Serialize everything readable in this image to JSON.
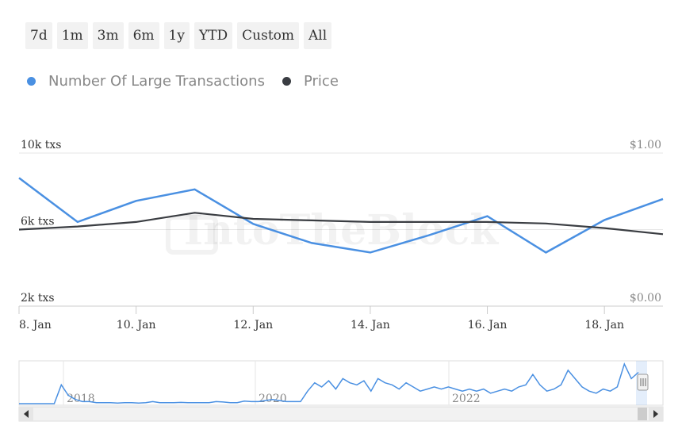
{
  "range_buttons": [
    "7d",
    "1m",
    "3m",
    "6m",
    "1y",
    "YTD",
    "Custom",
    "All"
  ],
  "watermark": "IntoTheBlock",
  "colors": {
    "large_tx": "#4a90e2",
    "price": "#3a3d42",
    "grid": "#e6e6e6",
    "axis_text": "#333333",
    "muted_text": "#888888"
  },
  "chart_data": {
    "type": "line",
    "legend_placement": "top-left",
    "x": [
      "8. Jan",
      "9. Jan",
      "10. Jan",
      "11. Jan",
      "12. Jan",
      "13. Jan",
      "14. Jan",
      "15. Jan",
      "16. Jan",
      "17. Jan",
      "18. Jan",
      "19. Jan"
    ],
    "x_tick_labels": [
      "8. Jan",
      "10. Jan",
      "12. Jan",
      "14. Jan",
      "16. Jan",
      "18. Jan"
    ],
    "left_axis": {
      "ticks": [
        "10k txs",
        "6k txs",
        "2k txs"
      ],
      "tick_values": [
        10000,
        6000,
        2000
      ],
      "range": [
        2000,
        10000
      ]
    },
    "right_axis": {
      "ticks": [
        "$1.00",
        "$0.00"
      ],
      "tick_values": [
        1.0,
        0.0
      ],
      "range": [
        0,
        1
      ]
    },
    "series": [
      {
        "name": "Number Of Large Transactions",
        "axis": "left",
        "values": [
          8700,
          6400,
          7500,
          8100,
          6300,
          5300,
          4800,
          5700,
          6700,
          4800,
          6500,
          7600
        ]
      },
      {
        "name": "Price",
        "axis": "right",
        "values": [
          0.5,
          0.52,
          0.55,
          0.61,
          0.57,
          0.56,
          0.55,
          0.55,
          0.55,
          0.54,
          0.51,
          0.47
        ]
      }
    ],
    "navigator": {
      "year_labels": [
        "2018",
        "2020",
        "2022"
      ],
      "values": [
        0,
        0,
        0,
        0,
        0,
        0,
        0.9,
        0.4,
        0.2,
        0.1,
        0.1,
        0.05,
        0.05,
        0.05,
        0.03,
        0.05,
        0.05,
        0.03,
        0.05,
        0.1,
        0.05,
        0.05,
        0.05,
        0.06,
        0.05,
        0.05,
        0.05,
        0.05,
        0.1,
        0.08,
        0.05,
        0.05,
        0.12,
        0.1,
        0.1,
        0.15,
        0.2,
        0.15,
        0.1,
        0.1,
        0.1,
        0.6,
        1.0,
        0.8,
        1.1,
        0.7,
        1.2,
        1.0,
        0.9,
        1.1,
        0.6,
        1.2,
        1.0,
        0.9,
        0.7,
        1.0,
        0.8,
        0.6,
        0.7,
        0.8,
        0.7,
        0.8,
        0.7,
        0.6,
        0.7,
        0.6,
        0.7,
        0.5,
        0.6,
        0.7,
        0.6,
        0.8,
        0.9,
        1.4,
        0.9,
        0.6,
        0.7,
        0.9,
        1.6,
        1.2,
        0.8,
        0.6,
        0.5,
        0.7,
        0.6,
        0.8,
        1.9,
        1.2,
        1.5
      ]
    }
  }
}
